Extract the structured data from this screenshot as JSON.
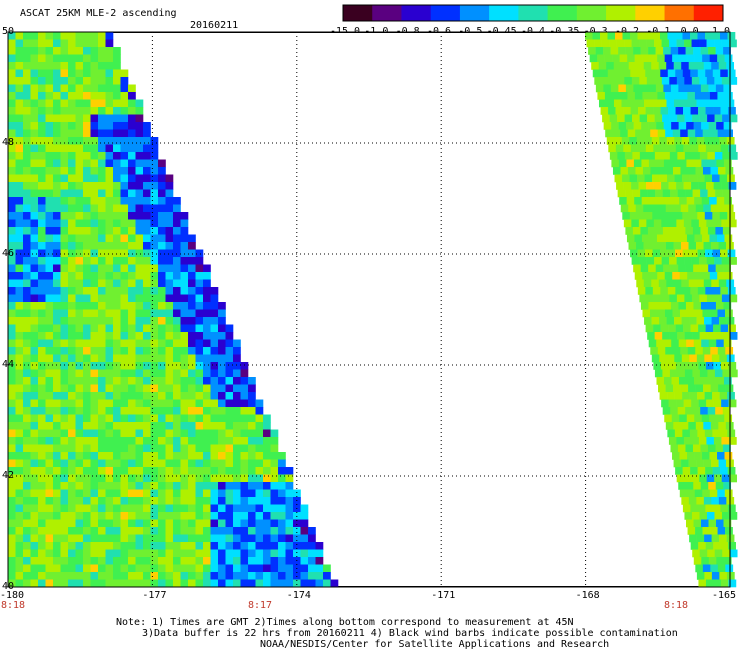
{
  "header": {
    "title": "ASCAT 25KM MLE-2 ascending",
    "date": "20160211"
  },
  "colorbar": {
    "labels": [
      "-15.0",
      "-1.0",
      "-0.8",
      "-0.6",
      "-0.5",
      "-0.45",
      "-0.4",
      "-0.35",
      "-0.3",
      "-0.2",
      "-0.1",
      "0.0",
      "1.0"
    ],
    "colors": [
      "#3a0020",
      "#5a0080",
      "#2a00d0",
      "#0030ff",
      "#0090ff",
      "#00e0ff",
      "#20e0b0",
      "#40f050",
      "#70f030",
      "#b0f000",
      "#ffd000",
      "#ff7000",
      "#ff2000"
    ]
  },
  "axes": {
    "x_ticks": [
      "-180",
      "-177",
      "-174",
      "-171",
      "-168",
      "-165"
    ],
    "y_ticks": [
      "50",
      "48",
      "46",
      "44",
      "42",
      "40"
    ],
    "lon_range": [
      -180,
      -165
    ],
    "lat_range": [
      40,
      50
    ]
  },
  "time_labels": [
    "8:18",
    "8:17",
    "8:18"
  ],
  "notes": [
    "Note: 1) Times are GMT 2)Times along bottom correspond to measurement at 45N",
    "3)Data buffer is 22 hrs from 20160211 4) Black wind barbs indicate possible contamination",
    "NOAA/NESDIS/Center for Satellite Applications and Research"
  ]
}
